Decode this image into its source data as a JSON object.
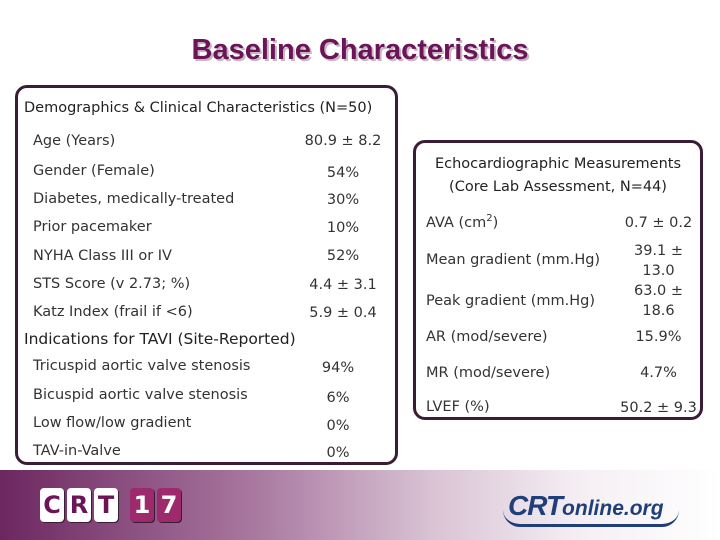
{
  "title": "Baseline Characteristics",
  "demographics": {
    "heading": "Demographics & Clinical Characteristics (N=50)",
    "rows": [
      {
        "label": "Age (Years)",
        "value": "80.9 ± 8.2"
      },
      {
        "label": "Gender (Female)",
        "value": "54%"
      },
      {
        "label": "Diabetes, medically-treated",
        "value": "30%"
      },
      {
        "label": "Prior pacemaker",
        "value": "10%"
      },
      {
        "label": "NYHA Class III or IV",
        "value": "52%"
      },
      {
        "label": "STS Score (v 2.73; %)",
        "value": "4.4 ± 3.1"
      },
      {
        "label": "Katz Index (frail if <6)",
        "value": "5.9 ± 0.4"
      }
    ]
  },
  "indications": {
    "heading": "Indications for TAVI (Site-Reported)",
    "rows": [
      {
        "label": "Tricuspid aortic valve stenosis",
        "value": "94%"
      },
      {
        "label": "Bicuspid aortic valve stenosis",
        "value": "6%"
      },
      {
        "label": "Low flow/low gradient",
        "value": "0%"
      },
      {
        "label": "TAV-in-Valve",
        "value": "0%"
      }
    ]
  },
  "echo": {
    "heading_line1": "Echocardiographic Measurements",
    "heading_line2": "(Core Lab Assessment, N=44)",
    "rows": [
      {
        "label_main": "AVA (cm",
        "label_sup": "2",
        "label_tail": ")",
        "value_line1": "0.7 ± 0.2",
        "value_line2": ""
      },
      {
        "label_main": "Mean gradient (mm.Hg)",
        "label_sup": "",
        "label_tail": "",
        "value_line1": "39.1 ±",
        "value_line2": "13.0"
      },
      {
        "label_main": "Peak gradient (mm.Hg)",
        "label_sup": "",
        "label_tail": "",
        "value_line1": "63.0 ±",
        "value_line2": "18.6"
      },
      {
        "label_main": "AR (mod/severe)",
        "label_sup": "",
        "label_tail": "",
        "value_line1": "15.9%",
        "value_line2": ""
      },
      {
        "label_main": "MR (mod/severe)",
        "label_sup": "",
        "label_tail": "",
        "value_line1": "4.7%",
        "value_line2": ""
      },
      {
        "label_main": "LVEF (%)",
        "label_sup": "",
        "label_tail": "",
        "value_line1": "50.2 ± 9.3",
        "value_line2": ""
      }
    ]
  },
  "footer": {
    "crt_letters": [
      "C",
      "R",
      "T"
    ],
    "crt_digits": [
      "1",
      "7"
    ],
    "crtonline_brand": "CRT",
    "crtonline_suffix": "online.org"
  }
}
